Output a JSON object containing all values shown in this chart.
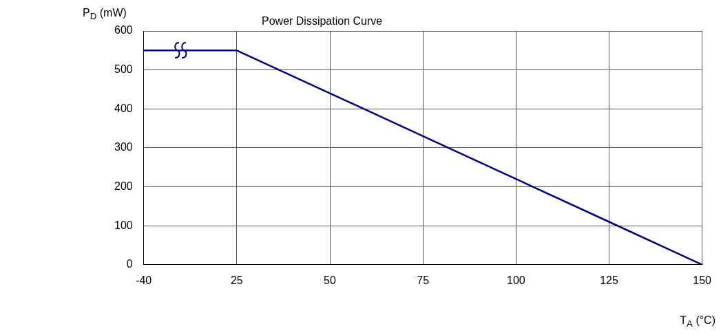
{
  "chart_data": {
    "type": "line",
    "title": "Power Dissipation Curve",
    "xlabel": "T$_{A}$ (°C)",
    "ylabel": "P$_{D}$ (mW)",
    "categories": [
      "-40",
      "25",
      "50",
      "75",
      "100",
      "125",
      "150"
    ],
    "series": [
      {
        "color": "#000080",
        "values": [
          550,
          550,
          440,
          330,
          220,
          110,
          0
        ]
      }
    ],
    "ylim": [
      0,
      600
    ],
    "yticks": [
      0,
      100,
      200,
      300,
      400,
      500,
      600
    ],
    "grid": true,
    "legend": false,
    "marker": "none",
    "line_style": "solid"
  }
}
